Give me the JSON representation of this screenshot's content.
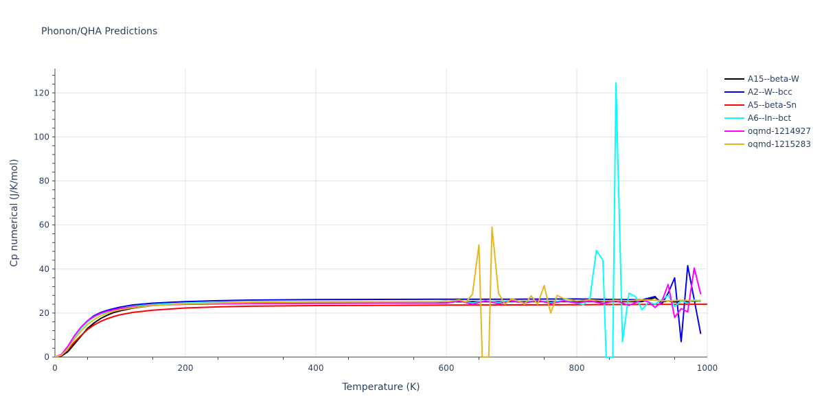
{
  "chart_data": {
    "type": "line",
    "title": "Phonon/QHA Predictions",
    "xlabel": "Temperature (K)",
    "ylabel": "Cp numerical (J/K/mol)",
    "xlim": [
      0,
      1000
    ],
    "ylim": [
      0,
      131
    ],
    "x_ticks": [
      0,
      200,
      400,
      600,
      800,
      1000
    ],
    "y_ticks": [
      0,
      20,
      40,
      60,
      80,
      100,
      120
    ],
    "grid": true,
    "legend_position": "top-right",
    "series": [
      {
        "name": "A15--beta-W",
        "color": "#000000",
        "x": [
          0,
          10,
          20,
          30,
          40,
          50,
          60,
          70,
          80,
          90,
          100,
          120,
          150,
          200,
          250,
          300,
          400,
          500,
          600,
          700,
          800,
          900,
          920,
          930,
          940,
          950,
          960,
          970,
          980,
          990
        ],
        "y": [
          0,
          0.5,
          2.5,
          6,
          9.5,
          13,
          15.5,
          17.5,
          19,
          20.2,
          21,
          22.3,
          23.4,
          24.3,
          24.7,
          24.9,
          25,
          25.1,
          25.1,
          25.2,
          25.2,
          25.2,
          27,
          25,
          25.5,
          25,
          25.5,
          25,
          25.5,
          25.3
        ]
      },
      {
        "name": "A2--W--bcc",
        "color": "#0000ee",
        "x": [
          0,
          10,
          20,
          30,
          40,
          50,
          60,
          70,
          80,
          90,
          100,
          120,
          150,
          200,
          250,
          300,
          400,
          500,
          600,
          700,
          800,
          900,
          920,
          930,
          940,
          950,
          960,
          970,
          980,
          990
        ],
        "y": [
          0,
          1,
          4.5,
          9.5,
          13.5,
          16.5,
          18.8,
          20.2,
          21.2,
          22,
          22.7,
          23.7,
          24.5,
          25.2,
          25.6,
          25.9,
          26.1,
          26.2,
          26.3,
          26.3,
          26.4,
          26,
          27.5,
          24,
          29,
          36,
          7,
          41.5,
          26,
          10.5
        ]
      },
      {
        "name": "A5--beta-Sn",
        "color": "#ff0000",
        "x": [
          0,
          10,
          20,
          30,
          40,
          50,
          60,
          70,
          80,
          90,
          100,
          120,
          150,
          200,
          250,
          300,
          400,
          500,
          600,
          700,
          800,
          900,
          1000
        ],
        "y": [
          0,
          0.8,
          3.5,
          6.8,
          9.8,
          12.5,
          14.6,
          16.2,
          17.4,
          18.4,
          19.2,
          20.3,
          21.3,
          22.3,
          22.8,
          23.1,
          23.4,
          23.5,
          23.6,
          23.7,
          23.8,
          23.9,
          24
        ]
      },
      {
        "name": "A6--In--bct",
        "color": "#00ffff",
        "x": [
          0,
          10,
          20,
          30,
          40,
          50,
          60,
          70,
          80,
          90,
          100,
          120,
          150,
          200,
          300,
          400,
          500,
          580,
          600,
          610,
          620,
          640,
          660,
          680,
          700,
          720,
          740,
          760,
          780,
          800,
          810,
          820,
          830,
          840,
          845,
          850,
          855,
          860,
          870,
          880,
          890,
          900,
          910,
          920,
          930,
          940,
          950,
          960,
          970,
          980,
          990
        ],
        "y": [
          0,
          1,
          4.2,
          9,
          13,
          16,
          18.2,
          19.6,
          20.6,
          21.4,
          22,
          23,
          23.8,
          24.5,
          24.8,
          24.9,
          25,
          25,
          25.5,
          24.8,
          25.6,
          24.6,
          25.5,
          24.8,
          25.7,
          24.8,
          25.6,
          24.7,
          25.8,
          24.6,
          23.8,
          26.5,
          48.5,
          44,
          0,
          0,
          0,
          124.5,
          7,
          29,
          27.5,
          21.5,
          25,
          24,
          26,
          28,
          23,
          25.5,
          24.5,
          26,
          25
        ]
      },
      {
        "name": "oqmd-1214927",
        "color": "#ff00ff",
        "x": [
          0,
          10,
          20,
          30,
          40,
          50,
          60,
          70,
          80,
          90,
          100,
          120,
          150,
          200,
          300,
          400,
          500,
          600,
          620,
          640,
          660,
          680,
          700,
          720,
          740,
          760,
          780,
          800,
          820,
          840,
          860,
          880,
          900,
          910,
          920,
          930,
          940,
          950,
          960,
          970,
          980,
          990
        ],
        "y": [
          0,
          1.2,
          5,
          9.8,
          13.6,
          16.5,
          18.5,
          19.9,
          20.8,
          21.5,
          22,
          22.8,
          23.5,
          24,
          24.3,
          24.4,
          24.5,
          24.5,
          25.5,
          24,
          25.5,
          24.2,
          25.5,
          24.5,
          25.8,
          24.3,
          25.5,
          24.5,
          25.5,
          24.3,
          25.6,
          23.5,
          26,
          25,
          22.5,
          25,
          33,
          18,
          22,
          20.5,
          40.5,
          28.5
        ]
      },
      {
        "name": "oqmd-1215283",
        "color": "#e6b81e",
        "x": [
          0,
          10,
          20,
          30,
          40,
          50,
          60,
          70,
          80,
          90,
          100,
          120,
          150,
          200,
          300,
          400,
          500,
          600,
          620,
          630,
          640,
          650,
          655,
          660,
          665,
          670,
          680,
          690,
          700,
          710,
          720,
          730,
          740,
          750,
          760,
          770,
          780,
          800,
          820,
          840,
          860,
          880,
          900,
          920,
          940,
          960,
          980,
          990
        ],
        "y": [
          0,
          0.8,
          3.8,
          8.2,
          11.8,
          14.8,
          17,
          18.7,
          19.9,
          20.8,
          21.5,
          22.5,
          23.4,
          24.2,
          24.8,
          25,
          25.1,
          25.2,
          26,
          25,
          28.5,
          51,
          0,
          0,
          0,
          59,
          29,
          24,
          26.5,
          25.5,
          24,
          27.8,
          24,
          32.5,
          20,
          28,
          26.5,
          25.5,
          26,
          25.5,
          25.8,
          25.5,
          26,
          25.8,
          25.5,
          25.8,
          25.6,
          25.8
        ]
      }
    ]
  }
}
